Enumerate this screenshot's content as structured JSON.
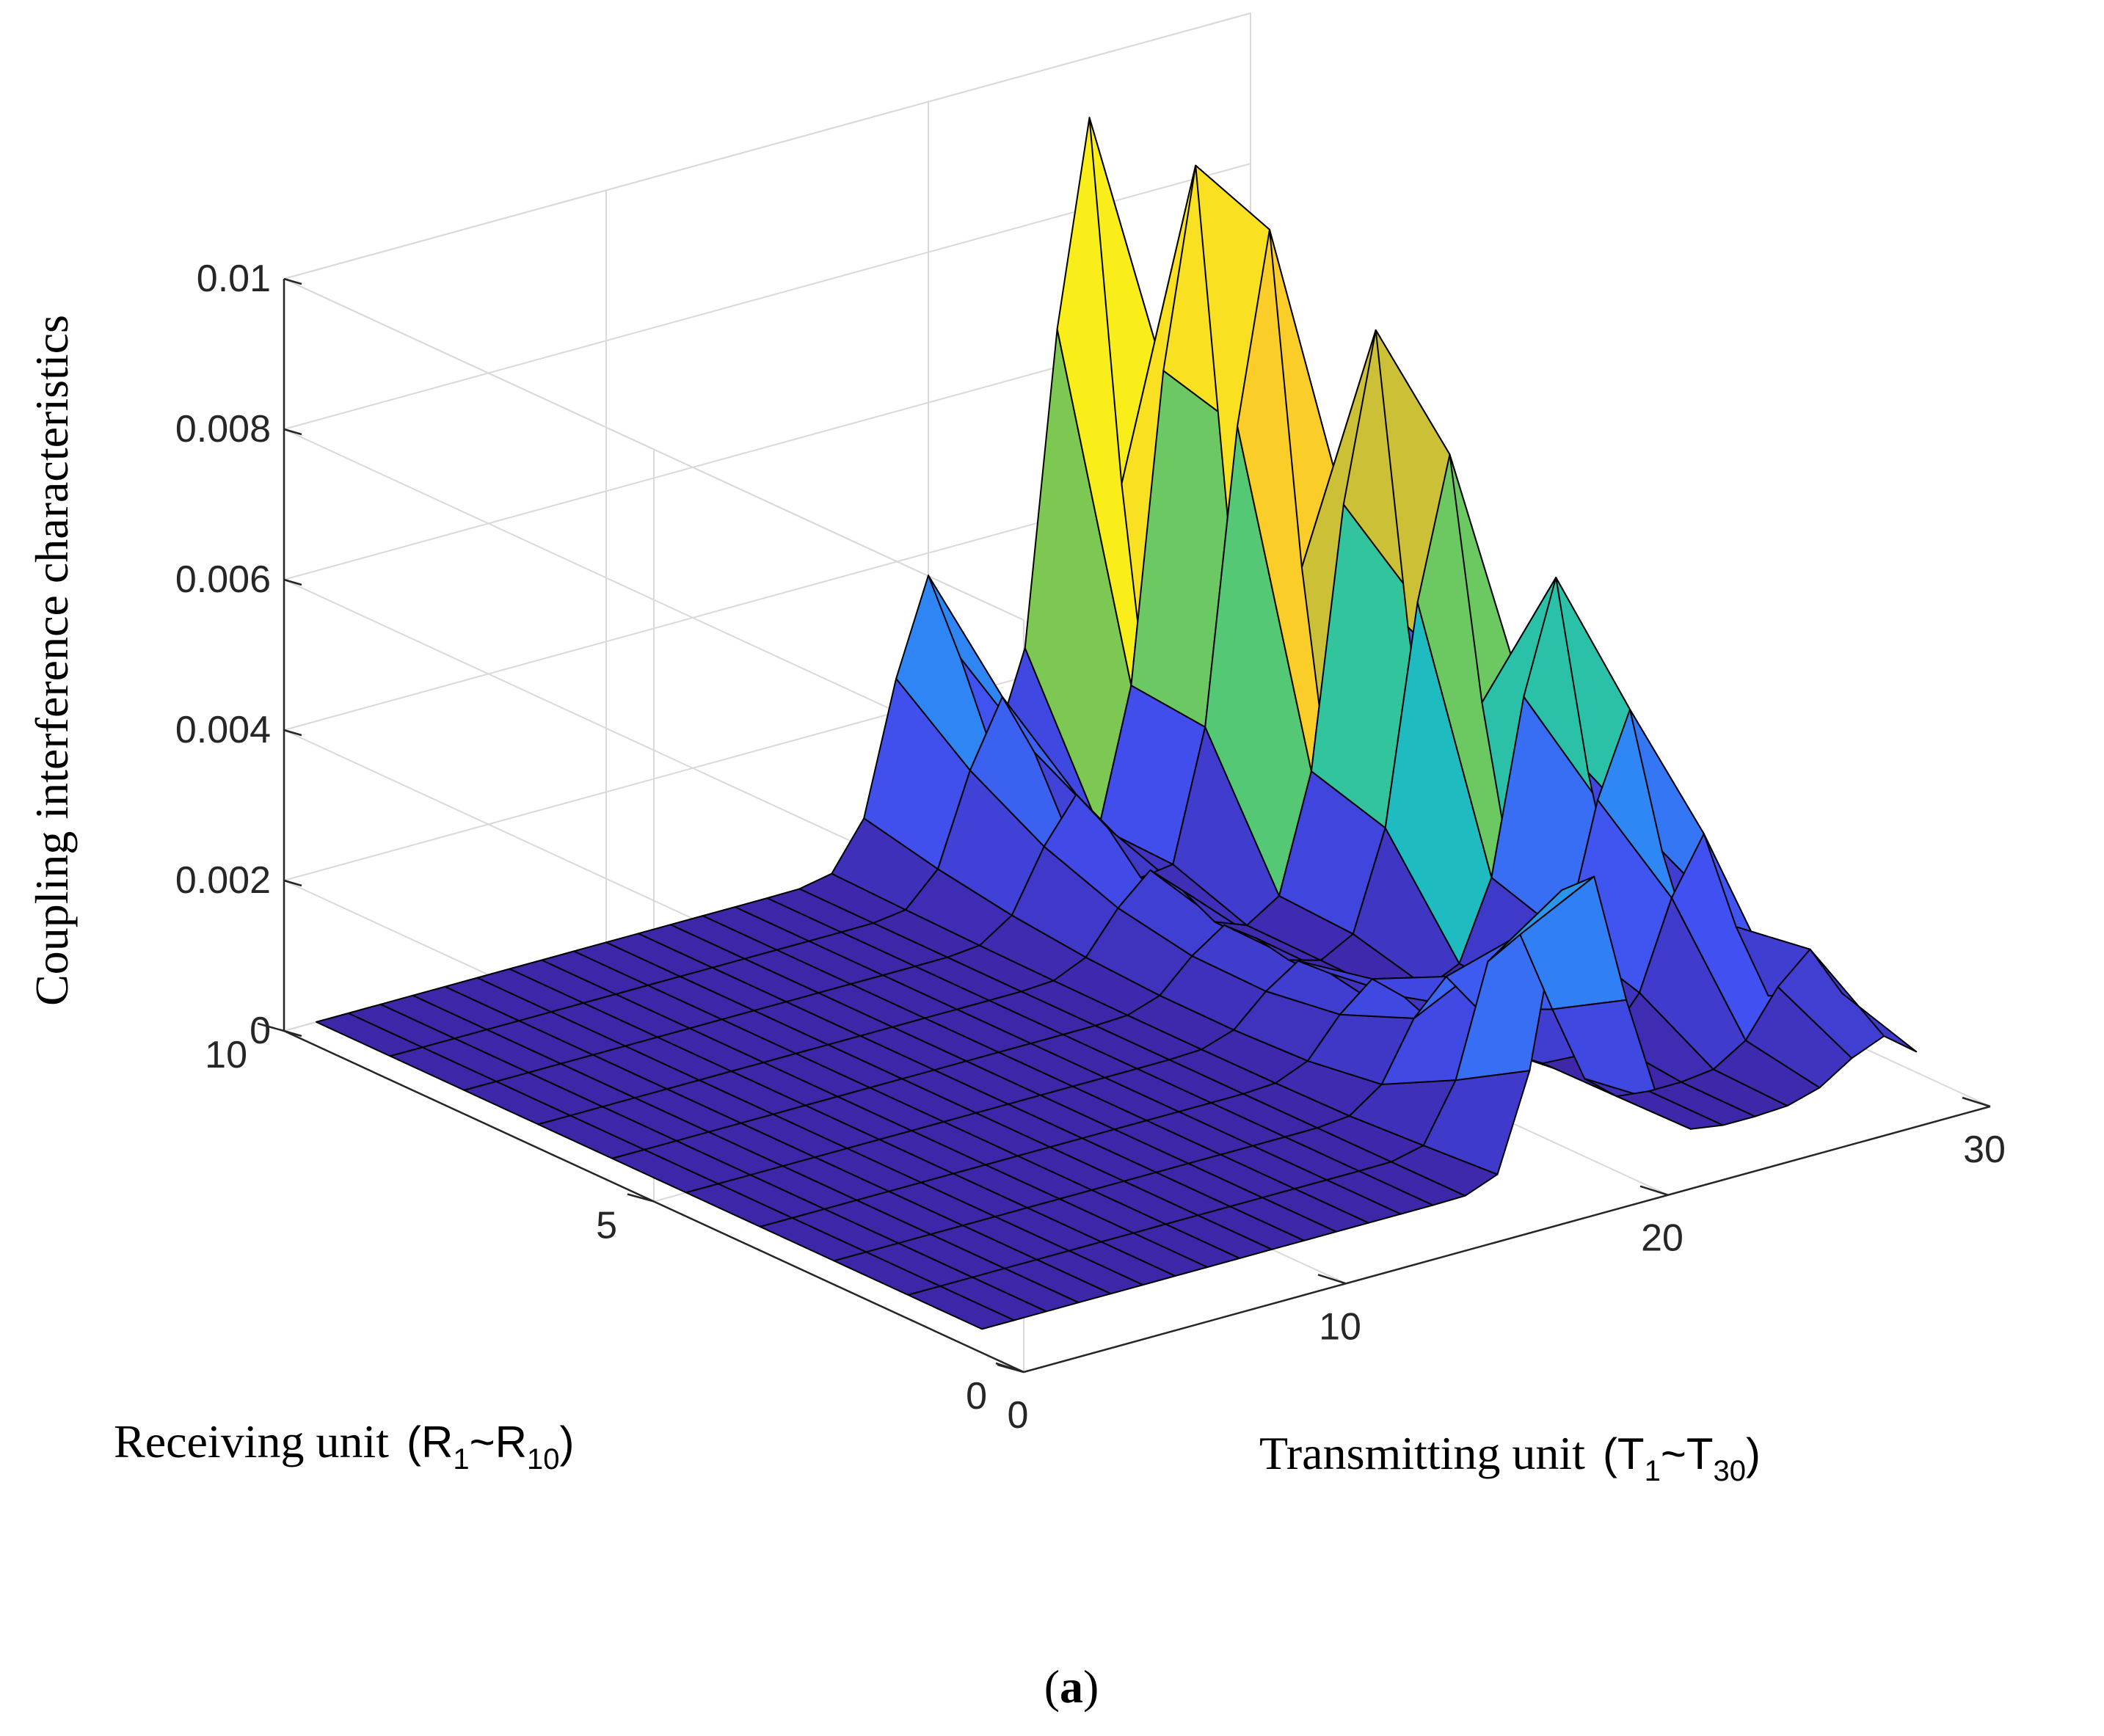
{
  "caption": {
    "open": "(",
    "letter": "a",
    "close": ")"
  },
  "chart_data": {
    "type": "surface3d",
    "title": "",
    "zlabel": "Coupling interference characteristics",
    "ylabel": {
      "text": "Receiving unit",
      "sym": "R",
      "sub_start": "1",
      "tilde": "~",
      "sub_end": "10"
    },
    "xlabel": {
      "text": "Transmitting unit",
      "sym": "T",
      "sub_start": "1",
      "tilde": "~",
      "sub_end": "30"
    },
    "xlim": [
      0,
      30
    ],
    "ylim": [
      0,
      10
    ],
    "zlim": [
      0,
      0.01
    ],
    "xticks": [
      "0",
      "10",
      "20",
      "30"
    ],
    "yticks": [
      "0",
      "5",
      "10"
    ],
    "zticks": [
      "0",
      "0.002",
      "0.004",
      "0.006",
      "0.008",
      "0.01"
    ],
    "grid": true,
    "colormap": "parula",
    "x_range": [
      1,
      30
    ],
    "y_range": [
      1,
      10
    ],
    "ridge_peaks": [
      {
        "x": 25,
        "y": 10,
        "z": 0.0092
      },
      {
        "x": 26,
        "y": 9,
        "z": 0.0089
      },
      {
        "x": 26,
        "y": 8,
        "z": 0.0085
      },
      {
        "x": 27,
        "y": 7,
        "z": 0.0075
      },
      {
        "x": 27,
        "y": 6,
        "z": 0.0063
      },
      {
        "x": 28,
        "y": 5,
        "z": 0.005
      },
      {
        "x": 28,
        "y": 4,
        "z": 0.0037
      },
      {
        "x": 28,
        "y": 3,
        "z": 0.0025
      },
      {
        "x": 29,
        "y": 2,
        "z": 0.0013
      },
      {
        "x": 29,
        "y": 1,
        "z": 0.0006
      }
    ],
    "secondary_peaks": [
      {
        "x": 20,
        "y": 10,
        "z": 0.0037
      },
      {
        "x": 20,
        "y": 1,
        "z": 0.0029
      }
    ]
  }
}
